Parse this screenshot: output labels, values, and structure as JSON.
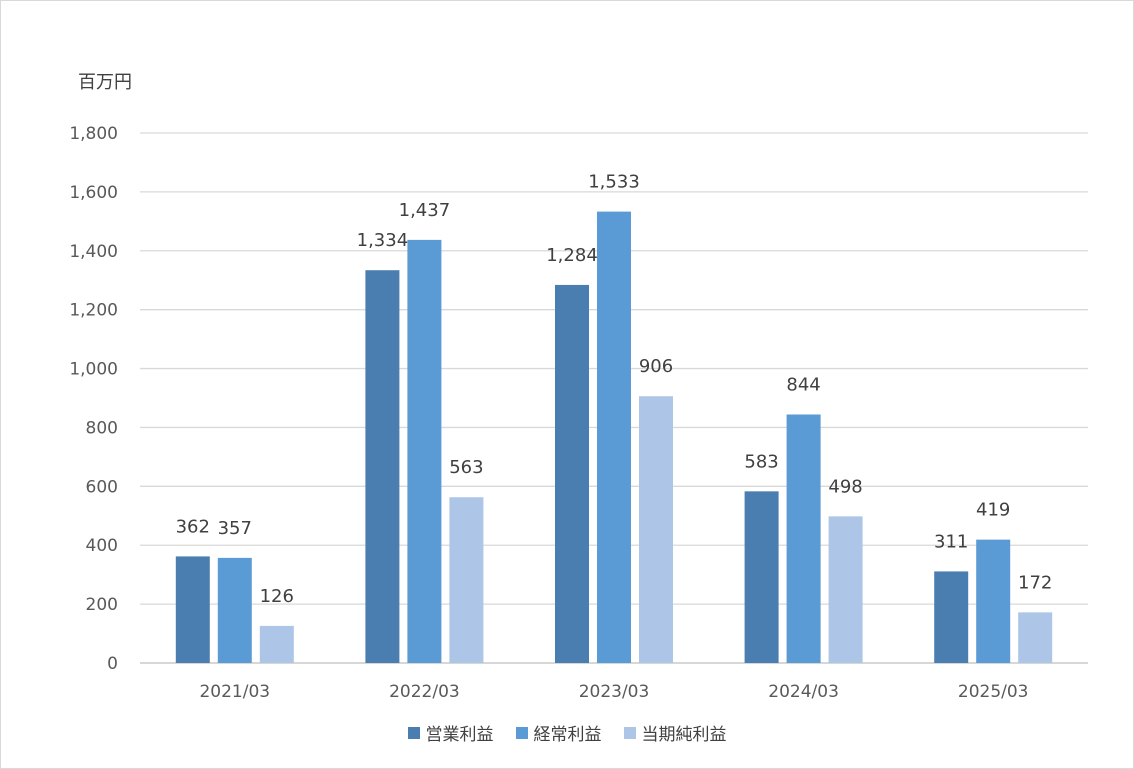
{
  "chart_data": {
    "type": "bar",
    "unit_label": "百万円",
    "categories": [
      "2021/03",
      "2022/03",
      "2023/03",
      "2024/03",
      "2025/03"
    ],
    "series": [
      {
        "name": "営業利益",
        "color": "#4a7eb0",
        "values": [
          362,
          1334,
          1284,
          583,
          311
        ],
        "labels": [
          "362",
          "1,334",
          "1,284",
          "583",
          "311"
        ]
      },
      {
        "name": "経常利益",
        "color": "#5b9bd5",
        "values": [
          357,
          1437,
          1533,
          844,
          419
        ],
        "labels": [
          "357",
          "1,437",
          "1,533",
          "844",
          "419"
        ]
      },
      {
        "name": "当期純利益",
        "color": "#adc5e6",
        "values": [
          126,
          563,
          906,
          498,
          172
        ],
        "labels": [
          "126",
          "563",
          "906",
          "498",
          "172"
        ]
      }
    ],
    "ylim": [
      0,
      1800
    ],
    "yticks": [
      0,
      200,
      400,
      600,
      800,
      1000,
      1200,
      1400,
      1600,
      1800
    ],
    "ytick_labels": [
      "0",
      "200",
      "400",
      "600",
      "800",
      "1,000",
      "1,200",
      "1,400",
      "1,600",
      "1,800"
    ],
    "grid": true,
    "legend_position": "bottom"
  }
}
